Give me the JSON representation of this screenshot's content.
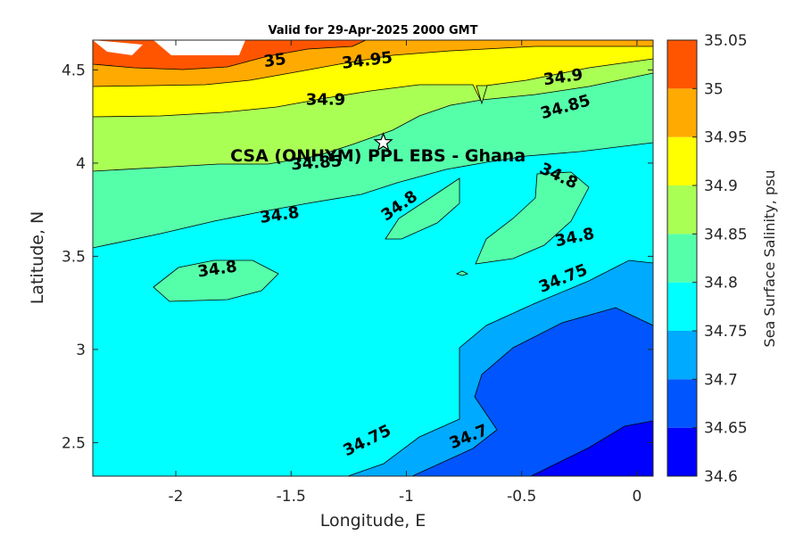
{
  "chart_data": {
    "type": "contour",
    "title": "Valid for 29-Apr-2025 2000 GMT",
    "xlabel": "Longitude, E",
    "ylabel": "Latitude, N",
    "xlim": [
      -2.36,
      0.07
    ],
    "ylim": [
      2.32,
      4.66
    ],
    "xticks": [
      -2,
      -1.5,
      -1,
      -0.5,
      0
    ],
    "xtick_labels": [
      "-2",
      "-1.5",
      "-1",
      "-0.5",
      "0"
    ],
    "yticks": [
      2.5,
      3,
      3.5,
      4,
      4.5
    ],
    "ytick_labels": [
      "2.5",
      "3",
      "3.5",
      "4",
      "4.5"
    ],
    "colorbar": {
      "title": "Sea Surface Salinity, psu",
      "levels": [
        34.6,
        34.65,
        34.7,
        34.75,
        34.8,
        34.85,
        34.9,
        34.95,
        35,
        35.05
      ],
      "level_labels": [
        "34.6",
        "34.65",
        "34.7",
        "34.75",
        "34.8",
        "34.85",
        "34.9",
        "34.95",
        "35",
        "35.05"
      ],
      "colors": [
        "#0000ff",
        "#0055ff",
        "#00aaff",
        "#00ffff",
        "#55ffaa",
        "#aaff55",
        "#ffff00",
        "#ffaa00",
        "#ff5500"
      ]
    },
    "site": {
      "label": "CSA (ONHYM) PPL EBS  - Ghana",
      "lon": -1.1,
      "lat": 4.11,
      "marker": "star"
    },
    "contour_labels": [
      {
        "text": "35",
        "lon": -1.57,
        "lat": 4.55,
        "angle": -8
      },
      {
        "text": "34.95",
        "lon": -1.17,
        "lat": 4.55,
        "angle": -7
      },
      {
        "text": "34.9",
        "lon": -1.35,
        "lat": 4.34,
        "angle": 0
      },
      {
        "text": "34.9",
        "lon": -0.32,
        "lat": 4.46,
        "angle": -8
      },
      {
        "text": "34.85",
        "lon": -0.31,
        "lat": 4.3,
        "angle": -16
      },
      {
        "text": "34.85",
        "lon": -1.39,
        "lat": 4.0,
        "angle": -4
      },
      {
        "text": "34.8",
        "lon": -1.55,
        "lat": 3.72,
        "angle": -8
      },
      {
        "text": "34.8",
        "lon": -1.03,
        "lat": 3.77,
        "angle": -35
      },
      {
        "text": "34.8",
        "lon": -0.34,
        "lat": 3.93,
        "angle": 25
      },
      {
        "text": "34.8",
        "lon": -0.27,
        "lat": 3.6,
        "angle": -12
      },
      {
        "text": "34.8",
        "lon": -1.82,
        "lat": 3.43,
        "angle": -8
      },
      {
        "text": "34.75",
        "lon": -0.32,
        "lat": 3.38,
        "angle": -22
      },
      {
        "text": "34.75",
        "lon": -1.17,
        "lat": 2.51,
        "angle": -26
      },
      {
        "text": "34.7",
        "lon": -0.73,
        "lat": 2.53,
        "angle": -22
      }
    ]
  }
}
